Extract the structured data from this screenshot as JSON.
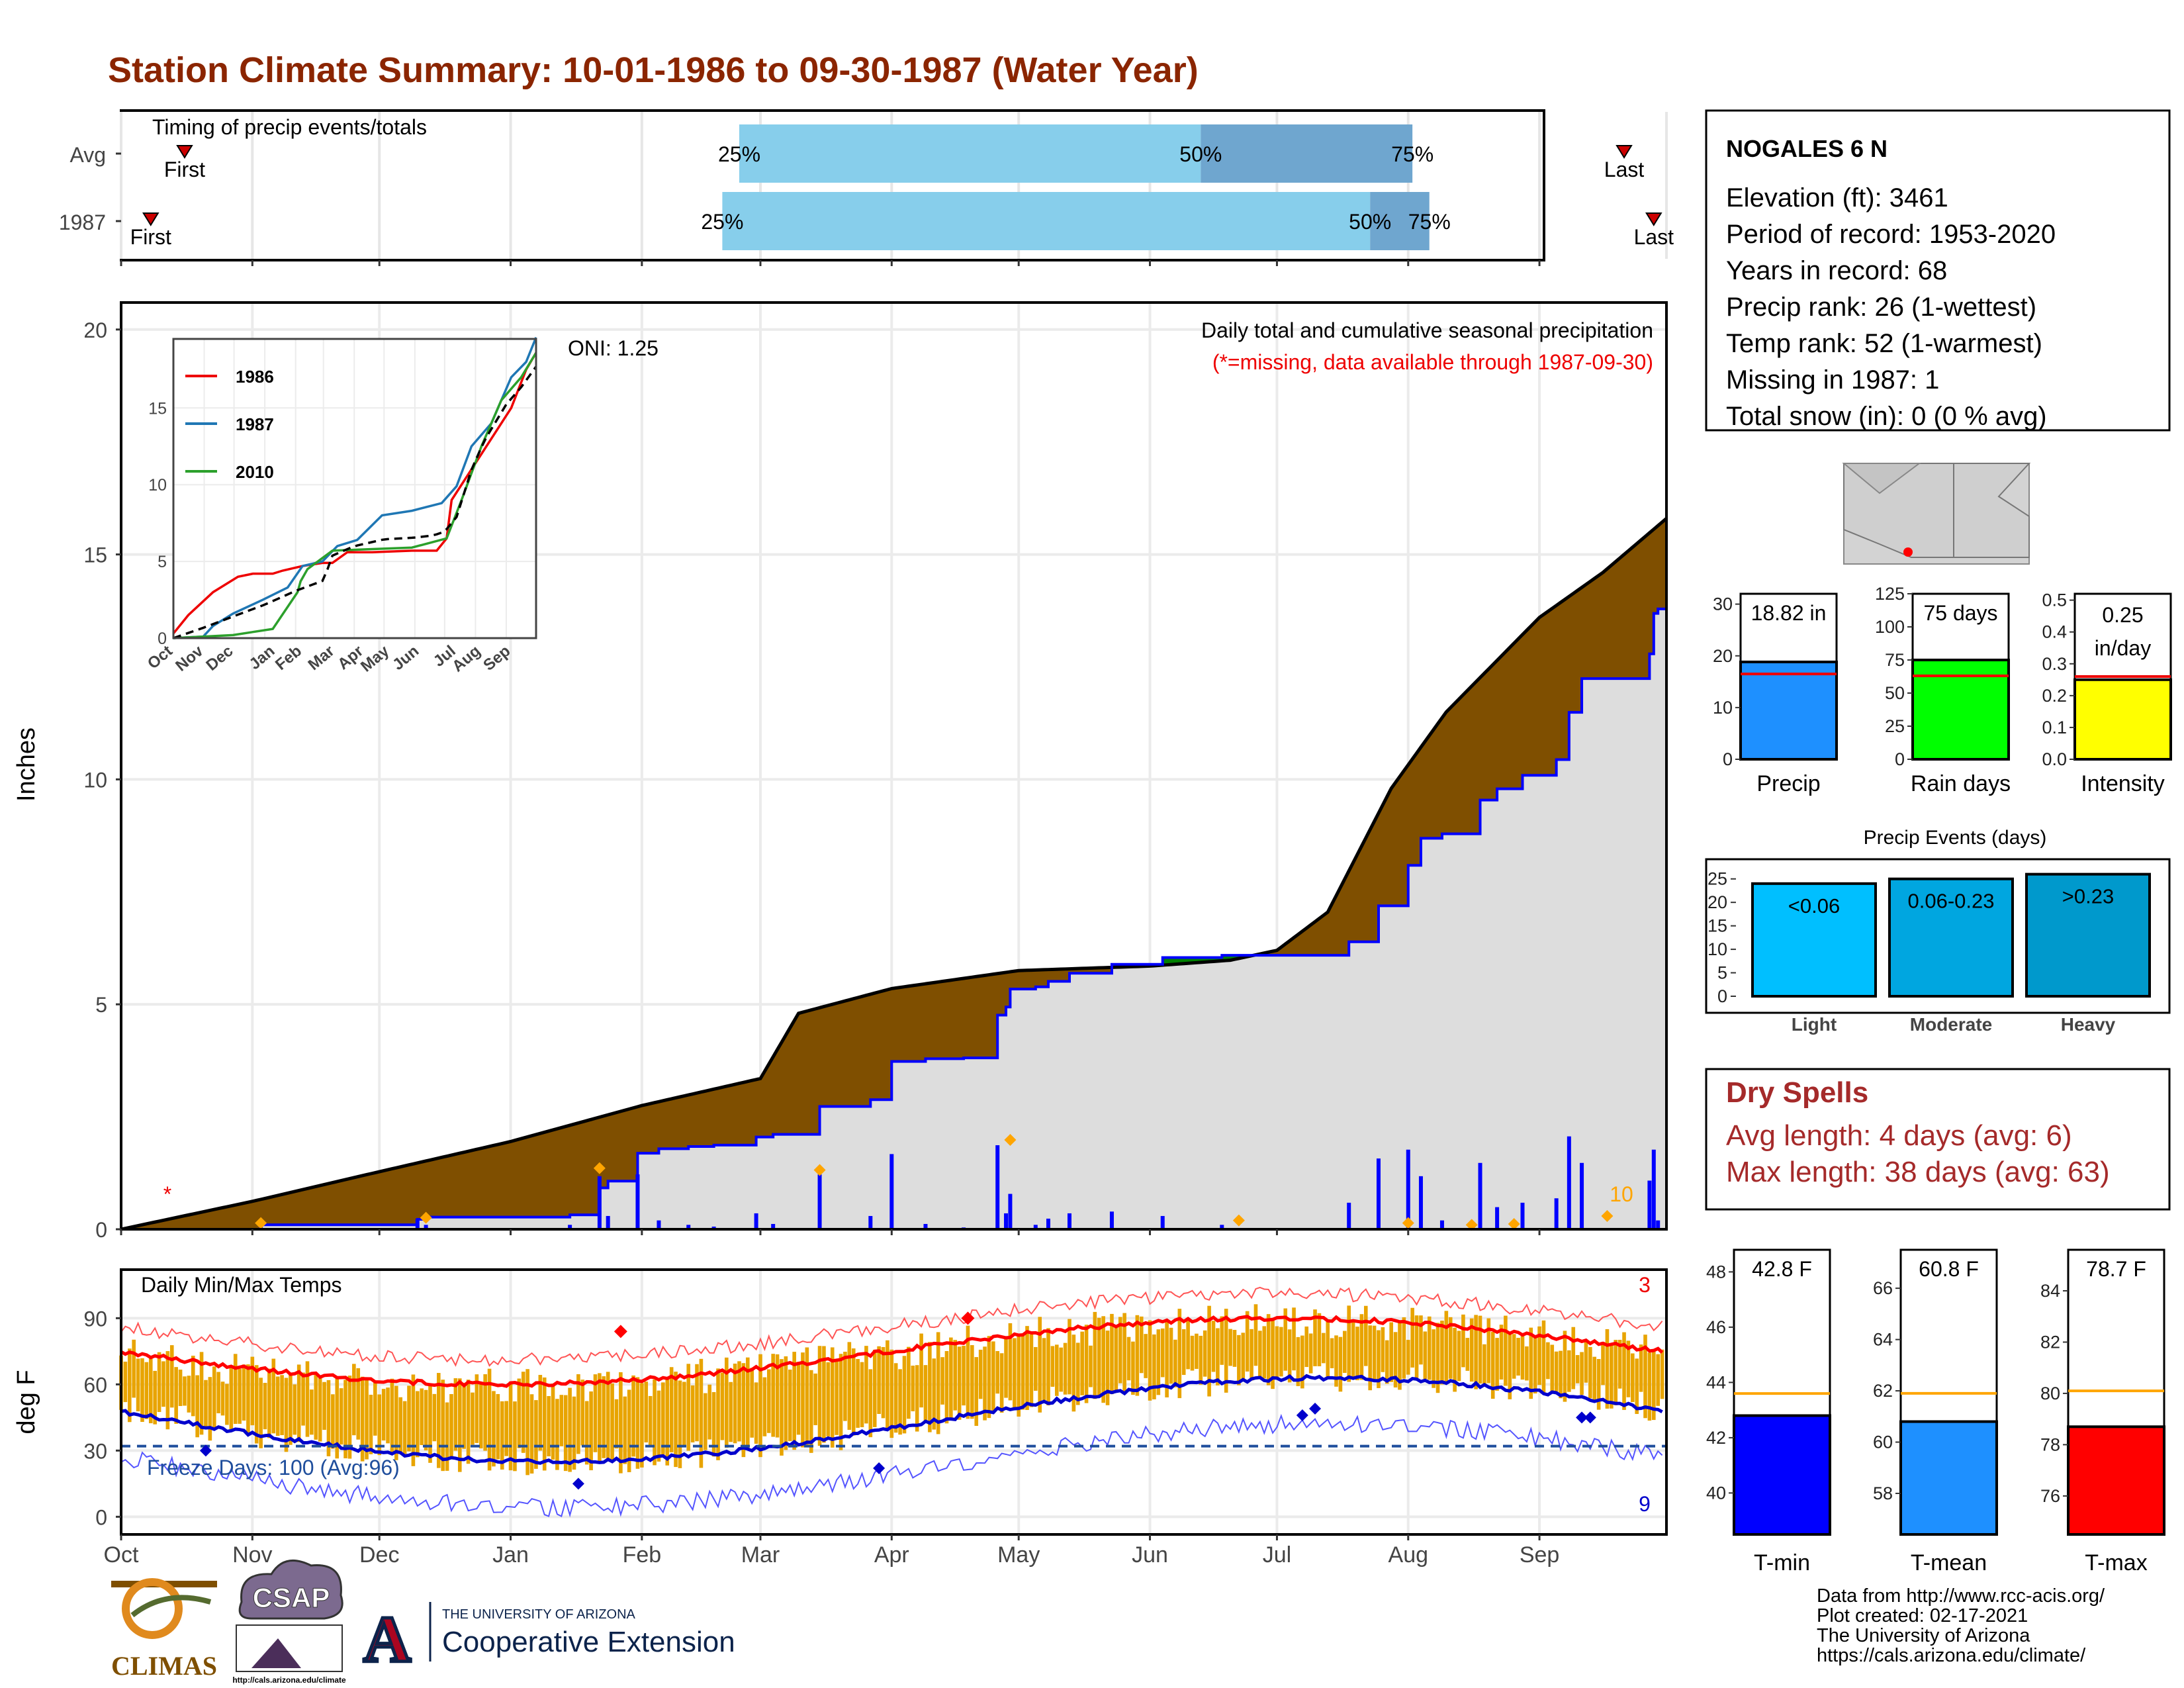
{
  "title": "Station Climate Summary: 10-01-1986 to 09-30-1987 (Water Year)",
  "colors": {
    "title": "#8b2500",
    "green_fill": "#008000",
    "brown_fill": "#7f4f00",
    "gray_fill": "#dddddd",
    "blue_line": "#0000ff",
    "timing_light": "#87ceeb",
    "timing_dark": "#6fa6cf",
    "temp_bar": "#e8a400",
    "temp_max": "#ff0000",
    "temp_min": "#0000cc",
    "dry_spells": "#a52a2a",
    "light": "#00bfff",
    "moderate": "#00a6e0",
    "heavy": "#0099cc"
  },
  "months": [
    "Oct",
    "Nov",
    "Dec",
    "Jan",
    "Feb",
    "Mar",
    "Apr",
    "May",
    "Jun",
    "Jul",
    "Aug",
    "Sep"
  ],
  "timing": {
    "title": "Timing of precip events/totals",
    "rows": [
      {
        "label": "Avg",
        "first": "First",
        "last": "Last",
        "p25": "25%",
        "p50": "50%",
        "p75": "75%",
        "first_day": 15,
        "p25_day": 146,
        "p50_day": 255,
        "p75_day": 305,
        "last_day": 355
      },
      {
        "label": "1987",
        "first": "First",
        "last": "Last",
        "p25": "25%",
        "p50": "50%",
        "p75": "75%",
        "first_day": 7,
        "p25_day": 142,
        "p50_day": 295,
        "p75_day": 309,
        "last_day": 362
      }
    ]
  },
  "precip_panel": {
    "ylabel": "Inches",
    "title": "Daily total and cumulative seasonal precipitation",
    "missing_note": "(*=missing, data available through 1987-09-30)",
    "missing_marker": "*",
    "max_daily_label": "10",
    "yticks": [
      "0",
      "5",
      "10",
      "15",
      "20"
    ]
  },
  "inset": {
    "oni": "ONI: 1.25",
    "legend": [
      {
        "name": "1986",
        "color": "#ee0000"
      },
      {
        "name": "1987",
        "color": "#1f77b4"
      },
      {
        "name": "2010",
        "color": "#2ca02c"
      }
    ],
    "yticks": [
      "0",
      "5",
      "10",
      "15"
    ]
  },
  "station": {
    "name": "NOGALES 6 N",
    "lines": [
      "Elevation (ft): 3461",
      "Period of record: 1953-2020",
      "Years in record: 68",
      "Precip rank: 26 (1-wettest)",
      "Temp rank: 52 (1-warmest)",
      "Missing in 1987: 1",
      "Total snow (in): 0 (0 % avg)"
    ]
  },
  "mini_bars": [
    {
      "label": "Precip",
      "value_label": "18.82 in",
      "value": 18.82,
      "avg": 16.5,
      "max": 32,
      "ticks": [
        "0",
        "10",
        "20",
        "30"
      ],
      "color": "#1e90ff"
    },
    {
      "label": "Rain days",
      "value_label": "75 days",
      "value": 75,
      "avg": 63,
      "max": 125,
      "ticks": [
        "0",
        "25",
        "50",
        "75",
        "100",
        "125"
      ],
      "color": "#00ff00"
    },
    {
      "label": "Intensity",
      "value_label_1": "0.25",
      "value_label_2": "in/day",
      "value": 0.25,
      "avg": 0.26,
      "max": 0.52,
      "ticks": [
        "0.0",
        "0.1",
        "0.2",
        "0.3",
        "0.4",
        "0.5"
      ],
      "color": "#ffff00"
    }
  ],
  "events": {
    "title": "Precip Events (days)",
    "ticks": [
      "0",
      "5",
      "10",
      "15",
      "20",
      "25"
    ],
    "bars": [
      {
        "label": "Light",
        "inner": "<0.06",
        "value": 24
      },
      {
        "label": "Moderate",
        "inner": "0.06-0.23",
        "value": 25
      },
      {
        "label": "Heavy",
        "inner": ">0.23",
        "value": 26
      }
    ]
  },
  "dry_spells": {
    "title": "Dry Spells",
    "avg": "Avg length: 4 days (avg: 6)",
    "max": "Max length: 38 days (avg: 63)"
  },
  "temp_panel": {
    "ylabel": "deg F",
    "title": "Daily Min/Max Temps",
    "freeze": "Freeze Days: 100 (Avg:96)",
    "record_high_count": "3",
    "record_low_count": "9",
    "yticks": [
      "0",
      "30",
      "60",
      "90"
    ]
  },
  "temp_bars": [
    {
      "label": "T-min",
      "value_label": "42.8 F",
      "value": 42.8,
      "avg": 43.6,
      "min": 38.5,
      "max": 48.8,
      "ticks": [
        "40",
        "42",
        "44",
        "46",
        "48"
      ],
      "color": "#0000ff"
    },
    {
      "label": "T-mean",
      "value_label": "60.8 F",
      "value": 60.8,
      "avg": 61.9,
      "min": 56.4,
      "max": 67.5,
      "ticks": [
        "58",
        "60",
        "62",
        "64",
        "66"
      ],
      "color": "#1e90ff"
    },
    {
      "label": "T-max",
      "value_label": "78.7 F",
      "value": 78.7,
      "avg": 80.1,
      "min": 74.5,
      "max": 85.6,
      "ticks": [
        "76",
        "78",
        "80",
        "82",
        "84"
      ],
      "color": "#ff0000"
    }
  ],
  "credits": {
    "lines": [
      "Data from http://www.rcc-acis.org/",
      "Plot created: 02-17-2021",
      "The University of Arizona",
      "https://cals.arizona.edu/climate/"
    ],
    "climas": "CLIMAS",
    "csap": "CSAP",
    "csap_url": "http://cals.arizona.edu/climate",
    "ua_small": "THE UNIVERSITY OF ARIZONA",
    "ua_big": "Cooperative Extension",
    "ua_letter": "A"
  }
}
